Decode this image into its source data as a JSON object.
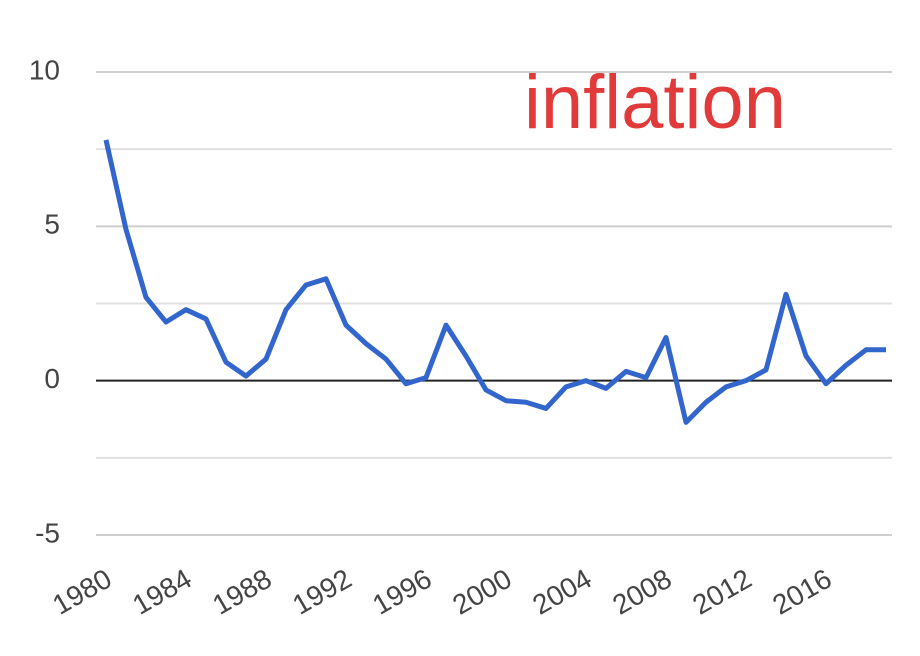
{
  "chart_data": {
    "type": "line",
    "title": "inflation",
    "x": [
      1980,
      1981,
      1982,
      1983,
      1984,
      1985,
      1986,
      1987,
      1988,
      1989,
      1990,
      1991,
      1992,
      1993,
      1994,
      1995,
      1996,
      1997,
      1998,
      1999,
      2000,
      2001,
      2002,
      2003,
      2004,
      2005,
      2006,
      2007,
      2008,
      2009,
      2010,
      2011,
      2012,
      2013,
      2014,
      2015,
      2016,
      2017,
      2018,
      2019
    ],
    "series": [
      {
        "name": "inflation",
        "color": "#3366cc",
        "values": [
          7.8,
          4.9,
          2.7,
          1.9,
          2.3,
          2.0,
          0.6,
          0.15,
          0.7,
          2.3,
          3.1,
          3.3,
          1.8,
          1.2,
          0.7,
          -0.1,
          0.1,
          1.8,
          0.8,
          -0.3,
          -0.65,
          -0.7,
          -0.9,
          -0.2,
          0.0,
          -0.25,
          0.3,
          0.1,
          1.4,
          -1.35,
          -0.7,
          -0.2,
          0.0,
          0.35,
          2.8,
          0.8,
          -0.1,
          0.5,
          1.0,
          1.0
        ]
      }
    ],
    "xlim": [
      1979.5,
      2019.3
    ],
    "xticks": [
      1980,
      1984,
      1988,
      1992,
      1996,
      2000,
      2004,
      2008,
      2012,
      2016
    ],
    "ylim": [
      -5,
      10
    ],
    "yticks": [
      -5,
      0,
      5,
      10
    ],
    "minor_yticks": [
      -2.5,
      2.5,
      7.5
    ],
    "grid": true,
    "title_color": "#e03a3a"
  }
}
